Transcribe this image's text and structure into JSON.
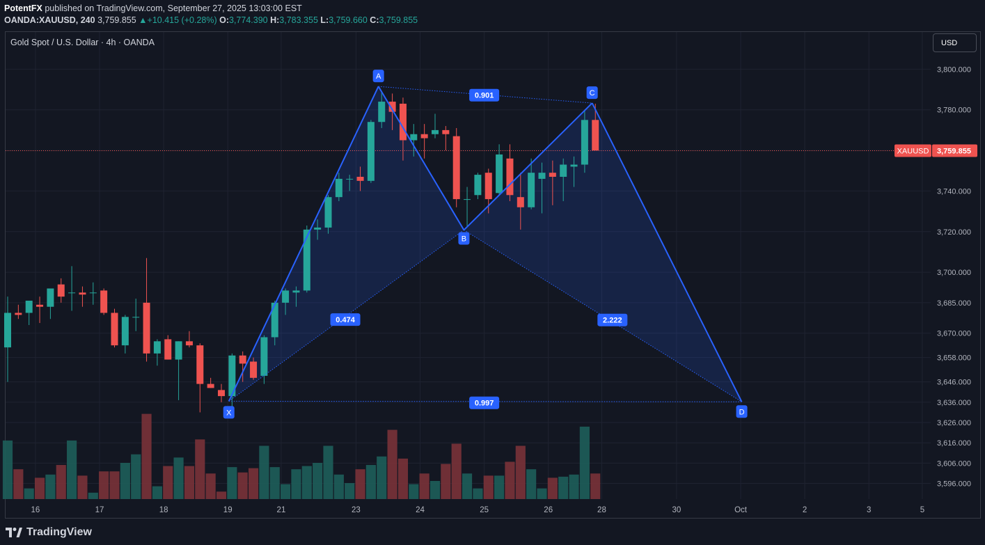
{
  "header": {
    "publisher": "PotentFX",
    "published_text": " published on TradingView.com, September 27, 2025 13:03:00 EST",
    "symbol": "OANDA:XAUUSD, 240",
    "last": "3,759.855",
    "change": "+10.415 (+0.28%)",
    "o_label": "O:",
    "o_value": "3,774.390",
    "h_label": "H:",
    "h_value": "3,783.355",
    "l_label": "L:",
    "l_value": "3,759.660",
    "c_label": "C:",
    "c_value": "3,759.855"
  },
  "footer": {
    "brand": "TradingView"
  },
  "colors": {
    "up": "#26a69a",
    "down": "#ef5350",
    "pattern": "#2962ff",
    "label_bg": "#2962ff",
    "background": "#131722"
  },
  "chart_data": {
    "type": "candlestick",
    "title": "Gold Spot / U.S. Dollar · 4h · OANDA",
    "currency_button": "USD",
    "price_tag": {
      "symbol": "XAUUSD",
      "value": "3,759.855",
      "price": 3759.855
    },
    "y_ticks": [
      "3,800.000",
      "3,780.000",
      "3,760.000",
      "3,740.000",
      "3,720.000",
      "3,700.000",
      "3,685.000",
      "3,670.000",
      "3,658.000",
      "3,646.000",
      "3,636.000",
      "3,626.000",
      "3,616.000",
      "3,606.000",
      "3,596.000"
    ],
    "y_tick_values": [
      3800,
      3780,
      3760,
      3740,
      3720,
      3700,
      3685,
      3670,
      3658,
      3646,
      3636,
      3626,
      3616,
      3606,
      3596
    ],
    "log_scale": true,
    "ylim": [
      3590,
      3810
    ],
    "x_ticks": [
      {
        "label": "16",
        "x": 2.6
      },
      {
        "label": "17",
        "x": 8.6
      },
      {
        "label": "18",
        "x": 14.6
      },
      {
        "label": "19",
        "x": 20.6
      },
      {
        "label": "21",
        "x": 25.6
      },
      {
        "label": "23",
        "x": 32.6
      },
      {
        "label": "24",
        "x": 38.6
      },
      {
        "label": "25",
        "x": 44.6
      },
      {
        "label": "26",
        "x": 50.6
      },
      {
        "label": "28",
        "x": 55.6
      },
      {
        "label": "30",
        "x": 62.6
      },
      {
        "label": "Oct",
        "x": 68.6
      },
      {
        "label": "2",
        "x": 74.6
      },
      {
        "label": "3",
        "x": 80.6
      },
      {
        "label": "5",
        "x": 85.6
      }
    ],
    "candles": [
      {
        "o": 3663,
        "h": 3688,
        "l": 3646,
        "c": 3680,
        "v": 55
      },
      {
        "o": 3680,
        "h": 3684,
        "l": 3677,
        "c": 3679,
        "v": 28
      },
      {
        "o": 3680,
        "h": 3686,
        "l": 3674,
        "c": 3686,
        "v": 10
      },
      {
        "o": 3684,
        "h": 3688,
        "l": 3675,
        "c": 3683,
        "v": 20
      },
      {
        "o": 3683,
        "h": 3691,
        "l": 3677,
        "c": 3692,
        "v": 23
      },
      {
        "o": 3694,
        "h": 3697,
        "l": 3685,
        "c": 3688,
        "v": 32
      },
      {
        "o": 3690,
        "h": 3703,
        "l": 3681,
        "c": 3690,
        "v": 55
      },
      {
        "o": 3690,
        "h": 3693,
        "l": 3683,
        "c": 3689,
        "v": 22
      },
      {
        "o": 3690,
        "h": 3695,
        "l": 3684,
        "c": 3690,
        "v": 6
      },
      {
        "o": 3691,
        "h": 3692,
        "l": 3679,
        "c": 3680,
        "v": 26
      },
      {
        "o": 3680,
        "h": 3682,
        "l": 3663,
        "c": 3664,
        "v": 26
      },
      {
        "o": 3664,
        "h": 3679,
        "l": 3660,
        "c": 3678,
        "v": 34
      },
      {
        "o": 3678,
        "h": 3687,
        "l": 3671,
        "c": 3678,
        "v": 42
      },
      {
        "o": 3685,
        "h": 3707,
        "l": 3656,
        "c": 3660,
        "v": 80
      },
      {
        "o": 3660,
        "h": 3667,
        "l": 3654,
        "c": 3666,
        "v": 12
      },
      {
        "o": 3667,
        "h": 3669,
        "l": 3657,
        "c": 3657,
        "v": 31
      },
      {
        "o": 3657,
        "h": 3666,
        "l": 3637,
        "c": 3666,
        "v": 39
      },
      {
        "o": 3666,
        "h": 3671,
        "l": 3663,
        "c": 3664,
        "v": 31
      },
      {
        "o": 3664,
        "h": 3665,
        "l": 3631,
        "c": 3645,
        "v": 56
      },
      {
        "o": 3645,
        "h": 3648,
        "l": 3643,
        "c": 3643,
        "v": 24
      },
      {
        "o": 3642,
        "h": 3645,
        "l": 3636,
        "c": 3639,
        "v": 7
      },
      {
        "o": 3639,
        "h": 3660,
        "l": 3634,
        "c": 3659,
        "v": 30
      },
      {
        "o": 3659,
        "h": 3661,
        "l": 3646,
        "c": 3655,
        "v": 25
      },
      {
        "o": 3656,
        "h": 3658,
        "l": 3647,
        "c": 3648,
        "v": 29
      },
      {
        "o": 3649,
        "h": 3669,
        "l": 3645,
        "c": 3668,
        "v": 50
      },
      {
        "o": 3668,
        "h": 3686,
        "l": 3664,
        "c": 3685,
        "v": 30
      },
      {
        "o": 3685,
        "h": 3692,
        "l": 3679,
        "c": 3691,
        "v": 14
      },
      {
        "o": 3690,
        "h": 3693,
        "l": 3683,
        "c": 3691,
        "v": 28
      },
      {
        "o": 3691,
        "h": 3723,
        "l": 3690,
        "c": 3721,
        "v": 31
      },
      {
        "o": 3721,
        "h": 3726,
        "l": 3716,
        "c": 3722,
        "v": 34
      },
      {
        "o": 3722,
        "h": 3738,
        "l": 3719,
        "c": 3737,
        "v": 50
      },
      {
        "o": 3737,
        "h": 3749,
        "l": 3735,
        "c": 3746,
        "v": 23
      },
      {
        "o": 3746,
        "h": 3748,
        "l": 3740,
        "c": 3746,
        "v": 15
      },
      {
        "o": 3747,
        "h": 3752,
        "l": 3740,
        "c": 3745,
        "v": 28
      },
      {
        "o": 3745,
        "h": 3775,
        "l": 3744,
        "c": 3774,
        "v": 32
      },
      {
        "o": 3774,
        "h": 3789,
        "l": 3771,
        "c": 3784,
        "v": 40
      },
      {
        "o": 3784,
        "h": 3788,
        "l": 3770,
        "c": 3779,
        "v": 65
      },
      {
        "o": 3783,
        "h": 3786,
        "l": 3755,
        "c": 3765,
        "v": 38
      },
      {
        "o": 3765,
        "h": 3773,
        "l": 3757,
        "c": 3768,
        "v": 14
      },
      {
        "o": 3768,
        "h": 3773,
        "l": 3756,
        "c": 3766,
        "v": 24
      },
      {
        "o": 3768,
        "h": 3778,
        "l": 3766,
        "c": 3770,
        "v": 17
      },
      {
        "o": 3770,
        "h": 3772,
        "l": 3760,
        "c": 3768,
        "v": 33
      },
      {
        "o": 3767,
        "h": 3771,
        "l": 3732,
        "c": 3736,
        "v": 52
      },
      {
        "o": 3736,
        "h": 3742,
        "l": 3722,
        "c": 3736,
        "v": 24
      },
      {
        "o": 3738,
        "h": 3749,
        "l": 3736,
        "c": 3748,
        "v": 10
      },
      {
        "o": 3749,
        "h": 3751,
        "l": 3729,
        "c": 3736,
        "v": 22
      },
      {
        "o": 3739,
        "h": 3763,
        "l": 3738,
        "c": 3758,
        "v": 22
      },
      {
        "o": 3756,
        "h": 3763,
        "l": 3735,
        "c": 3738,
        "v": 35
      },
      {
        "o": 3737,
        "h": 3749,
        "l": 3721,
        "c": 3732,
        "v": 50
      },
      {
        "o": 3732,
        "h": 3756,
        "l": 3731,
        "c": 3749,
        "v": 28
      },
      {
        "o": 3746,
        "h": 3754,
        "l": 3729,
        "c": 3749,
        "v": 10
      },
      {
        "o": 3749,
        "h": 3755,
        "l": 3733,
        "c": 3747,
        "v": 20
      },
      {
        "o": 3747,
        "h": 3756,
        "l": 3735,
        "c": 3753,
        "v": 21
      },
      {
        "o": 3752,
        "h": 3757,
        "l": 3742,
        "c": 3753,
        "v": 23
      },
      {
        "o": 3753,
        "h": 3780,
        "l": 3749,
        "c": 3775,
        "v": 68
      },
      {
        "o": 3775,
        "h": 3783,
        "l": 3760,
        "c": 3760,
        "v": 24
      }
    ],
    "pattern": {
      "points": [
        {
          "name": "X",
          "x": 20.7,
          "price": 3636.5
        },
        {
          "name": "A",
          "x": 34.7,
          "price": 3791.5
        },
        {
          "name": "B",
          "x": 42.7,
          "price": 3720.8
        },
        {
          "name": "C",
          "x": 54.7,
          "price": 3783.3
        },
        {
          "name": "D",
          "x": 68.7,
          "price": 3636.2
        }
      ],
      "ratios": [
        {
          "label": "0.474",
          "x": 31.6,
          "price": 3676.7
        },
        {
          "label": "0.901",
          "x": 44.6,
          "price": 3787.2
        },
        {
          "label": "2.222",
          "x": 56.6,
          "price": 3676.5
        },
        {
          "label": "0.997",
          "x": 44.6,
          "price": 3635.7
        }
      ]
    }
  }
}
